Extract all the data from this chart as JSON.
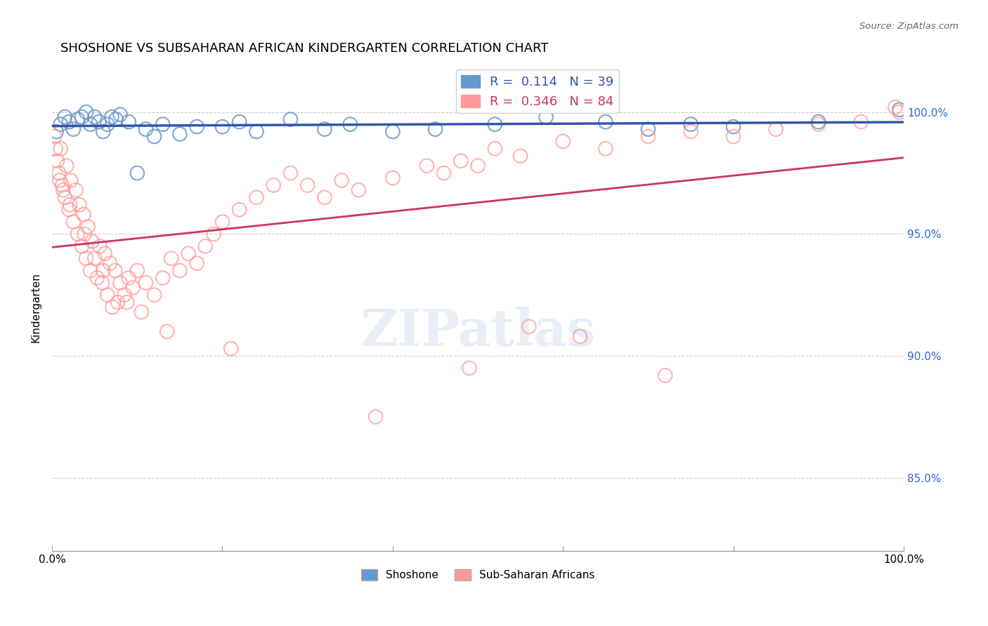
{
  "title": "SHOSHONE VS SUBSAHARAN AFRICAN KINDERGARTEN CORRELATION CHART",
  "source": "Source: ZipAtlas.com",
  "ylabel": "Kindergarten",
  "legend_labels": [
    "Shoshone",
    "Sub-Saharan Africans"
  ],
  "shoshone_color": "#6699cc",
  "subsaharan_color": "#ff9999",
  "shoshone_line_color": "#3355aa",
  "subsaharan_line_color": "#cc3366",
  "shoshone_R": 0.114,
  "shoshone_N": 39,
  "subsaharan_R": 0.346,
  "subsaharan_N": 84,
  "xlim": [
    0.0,
    100.0
  ],
  "ylim": [
    82.0,
    102.0
  ],
  "ytick_values": [
    85.0,
    90.0,
    95.0,
    100.0
  ],
  "background_color": "#ffffff",
  "watermark_text": "ZIPatlas",
  "shoshone_x": [
    0.5,
    1.0,
    1.5,
    2.0,
    2.5,
    3.0,
    3.5,
    4.0,
    4.5,
    5.0,
    5.5,
    6.0,
    6.5,
    7.0,
    7.5,
    8.0,
    9.0,
    10.0,
    11.0,
    12.0,
    13.0,
    15.0,
    17.0,
    20.0,
    22.0,
    24.0,
    28.0,
    32.0,
    35.0,
    40.0,
    45.0,
    52.0,
    58.0,
    65.0,
    70.0,
    75.0,
    80.0,
    90.0,
    99.5
  ],
  "shoshone_y": [
    99.2,
    99.5,
    99.8,
    99.6,
    99.3,
    99.7,
    99.8,
    100.0,
    99.5,
    99.8,
    99.6,
    99.2,
    99.5,
    99.8,
    99.7,
    99.9,
    99.6,
    97.5,
    99.3,
    99.0,
    99.5,
    99.1,
    99.4,
    99.4,
    99.6,
    99.2,
    99.7,
    99.3,
    99.5,
    99.2,
    99.3,
    99.5,
    99.8,
    99.6,
    99.3,
    99.5,
    99.4,
    99.6,
    100.1
  ],
  "subsaharan_x": [
    0.3,
    0.6,
    0.8,
    1.0,
    1.2,
    1.5,
    1.7,
    2.0,
    2.2,
    2.5,
    2.8,
    3.0,
    3.2,
    3.5,
    3.7,
    4.0,
    4.2,
    4.5,
    4.7,
    5.0,
    5.3,
    5.6,
    5.9,
    6.2,
    6.5,
    6.8,
    7.1,
    7.4,
    7.7,
    8.0,
    8.5,
    9.0,
    9.5,
    10.0,
    11.0,
    12.0,
    13.0,
    14.0,
    15.0,
    16.0,
    17.0,
    18.0,
    19.0,
    20.0,
    22.0,
    24.0,
    26.0,
    28.0,
    30.0,
    32.0,
    34.0,
    36.0,
    40.0,
    44.0,
    46.0,
    48.0,
    50.0,
    52.0,
    55.0,
    60.0,
    65.0,
    70.0,
    75.0,
    80.0,
    85.0,
    90.0,
    95.0,
    99.5,
    0.4,
    0.9,
    1.3,
    2.1,
    3.8,
    6.0,
    8.8,
    10.5,
    13.5,
    21.0,
    38.0,
    49.0,
    56.0,
    62.0,
    72.0,
    99.0
  ],
  "subsaharan_y": [
    99.0,
    98.0,
    97.5,
    98.5,
    97.0,
    96.5,
    97.8,
    96.0,
    97.2,
    95.5,
    96.8,
    95.0,
    96.2,
    94.5,
    95.8,
    94.0,
    95.3,
    93.5,
    94.7,
    94.0,
    93.2,
    94.5,
    93.0,
    94.2,
    92.5,
    93.8,
    92.0,
    93.5,
    92.2,
    93.0,
    92.5,
    93.2,
    92.8,
    93.5,
    93.0,
    92.5,
    93.2,
    94.0,
    93.5,
    94.2,
    93.8,
    94.5,
    95.0,
    95.5,
    96.0,
    96.5,
    97.0,
    97.5,
    97.0,
    96.5,
    97.2,
    96.8,
    97.3,
    97.8,
    97.5,
    98.0,
    97.8,
    98.5,
    98.2,
    98.8,
    98.5,
    99.0,
    99.2,
    99.0,
    99.3,
    99.5,
    99.6,
    100.0,
    98.5,
    97.2,
    96.8,
    96.2,
    95.0,
    93.5,
    92.2,
    91.8,
    91.0,
    90.3,
    87.5,
    89.5,
    91.2,
    90.8,
    89.2,
    100.2
  ]
}
